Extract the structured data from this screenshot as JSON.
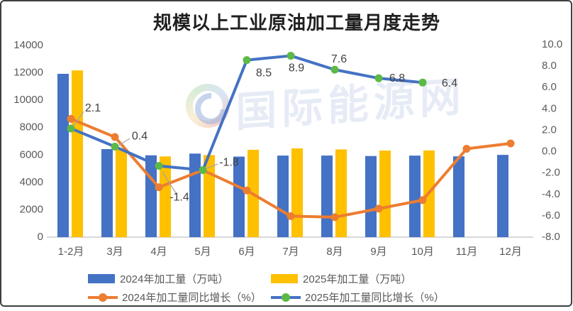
{
  "title": "规模以上工业原油加工量月度走势",
  "watermark": {
    "text": "国际能源网"
  },
  "chart_data": {
    "type": "bar+line combo, dual axis",
    "title": "规模以上工业原油加工量月度走势",
    "categories": [
      "1-2月",
      "3月",
      "4月",
      "5月",
      "6月",
      "7月",
      "8月",
      "9月",
      "10月",
      "11月",
      "12月"
    ],
    "left_axis": {
      "min": 0,
      "max": 14000,
      "step": 2000,
      "tick_labels": [
        "0",
        "2000",
        "4000",
        "6000",
        "8000",
        "10000",
        "12000",
        "14000"
      ]
    },
    "right_axis": {
      "min": -8,
      "max": 10,
      "step": 2,
      "tick_labels": [
        "-8.0",
        "-6.0",
        "-4.0",
        "-2.0",
        "0.0",
        "2.0",
        "4.0",
        "6.0",
        "8.0",
        "10.0"
      ]
    },
    "grid": "off",
    "legend_position": "bottom-two-rows",
    "series": [
      {
        "name": "2024年加工量（万吨）",
        "type": "bar",
        "axis": "left",
        "color": "#4472C4",
        "values": [
          11876,
          6378,
          5925,
          6052,
          5832,
          5906,
          5907,
          5873,
          5904,
          5848,
          5957
        ]
      },
      {
        "name": "2025年加工量（万吨）",
        "type": "bar",
        "axis": "left",
        "color": "#FFC000",
        "values": [
          12125,
          6404,
          5842,
          5943,
          6328,
          6432,
          6356,
          6272,
          6282,
          null,
          null
        ]
      },
      {
        "name": "2024年加工量同比增长（%）",
        "type": "line",
        "axis": "right",
        "color": "#ED7D31",
        "marker_color": "#ED7D31",
        "values": [
          3.0,
          1.3,
          -3.4,
          -1.8,
          -3.7,
          -6.1,
          -6.2,
          -5.4,
          -4.6,
          0.2,
          0.7
        ],
        "point_labels": [
          null,
          null,
          null,
          null,
          null,
          null,
          null,
          null,
          null,
          null,
          null
        ]
      },
      {
        "name": "2025年加工量同比增长（%）",
        "type": "line",
        "axis": "right",
        "color": "#4472C4",
        "marker_color": "#5CB947",
        "values": [
          2.1,
          0.4,
          -1.4,
          -1.8,
          8.5,
          8.9,
          7.6,
          6.8,
          6.4,
          null,
          null
        ],
        "point_labels": [
          "2.1",
          "0.4",
          "-1.4",
          "-1.8",
          "8.5",
          "8.9",
          "7.6",
          "6.8",
          "6.4",
          null,
          null
        ]
      }
    ],
    "colors": {
      "bar2024": "#4472C4",
      "bar2025": "#FFC000",
      "line2024": "#ED7D31",
      "line2025": "#4472C4",
      "marker2025": "#5CB947",
      "axis_text": "#595959",
      "axis_line": "#D9D9D9",
      "label_text": "#404040"
    }
  }
}
